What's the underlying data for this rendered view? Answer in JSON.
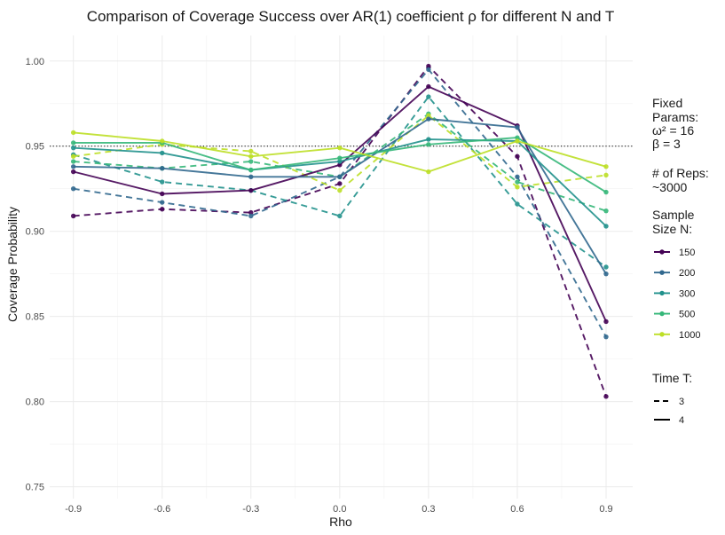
{
  "chart_data": {
    "type": "line",
    "title": "Comparison of Coverage Success over AR(1) coefficient ρ for different N and T",
    "xlabel": "Rho",
    "ylabel": "Coverage Probability",
    "x": [
      -0.9,
      -0.6,
      -0.3,
      0.0,
      0.3,
      0.6,
      0.9
    ],
    "x_ticks": [
      "-0.9",
      "-0.6",
      "-0.3",
      "0.0",
      "0.3",
      "0.6",
      "0.9"
    ],
    "y_ticks": [
      "0.75",
      "0.80",
      "0.85",
      "0.90",
      "0.95",
      "1.00"
    ],
    "xlim": [
      -0.98,
      0.99
    ],
    "ylim": [
      0.743,
      1.015
    ],
    "reference_line": {
      "y": 0.95,
      "style": "dotted"
    },
    "grid": true,
    "legend_position": "right",
    "series": [
      {
        "name": "150",
        "T": "3",
        "color": "#440154",
        "values": [
          0.909,
          0.913,
          0.911,
          0.928,
          0.997,
          0.944,
          0.803
        ]
      },
      {
        "name": "200",
        "T": "3",
        "color": "#31688e",
        "values": [
          0.925,
          0.917,
          0.909,
          0.932,
          0.995,
          0.932,
          0.838
        ]
      },
      {
        "name": "300",
        "T": "3",
        "color": "#21918c",
        "values": [
          0.945,
          0.929,
          0.924,
          0.909,
          0.979,
          0.916,
          0.879
        ]
      },
      {
        "name": "500",
        "T": "3",
        "color": "#35b779",
        "values": [
          0.941,
          0.937,
          0.941,
          0.932,
          0.969,
          0.929,
          0.912
        ]
      },
      {
        "name": "1000",
        "T": "3",
        "color": "#bddf26",
        "values": [
          0.944,
          0.951,
          0.947,
          0.924,
          0.968,
          0.926,
          0.933
        ]
      },
      {
        "name": "150",
        "T": "4",
        "color": "#440154",
        "values": [
          0.935,
          0.922,
          0.924,
          0.939,
          0.985,
          0.962,
          0.847
        ]
      },
      {
        "name": "200",
        "T": "4",
        "color": "#31688e",
        "values": [
          0.938,
          0.937,
          0.932,
          0.932,
          0.966,
          0.961,
          0.875
        ]
      },
      {
        "name": "300",
        "T": "4",
        "color": "#21918c",
        "values": [
          0.949,
          0.946,
          0.936,
          0.941,
          0.954,
          0.953,
          0.903
        ]
      },
      {
        "name": "500",
        "T": "4",
        "color": "#35b779",
        "values": [
          0.952,
          0.952,
          0.936,
          0.943,
          0.951,
          0.955,
          0.923
        ]
      },
      {
        "name": "1000",
        "T": "4",
        "color": "#bddf26",
        "values": [
          0.958,
          0.953,
          0.944,
          0.949,
          0.935,
          0.953,
          0.938
        ]
      }
    ]
  },
  "legend": {
    "fixed_title": [
      "Fixed",
      "Params:"
    ],
    "omega_text": "ω² = 16",
    "beta_text": "β = 3",
    "reps_title": "# of Reps:",
    "reps_value": "~3000",
    "sample_title": [
      "Sample",
      "Size N:"
    ],
    "sample_items": [
      {
        "label": "150",
        "color": "#440154"
      },
      {
        "label": "200",
        "color": "#31688e"
      },
      {
        "label": "300",
        "color": "#21918c"
      },
      {
        "label": "500",
        "color": "#35b779"
      },
      {
        "label": "1000",
        "color": "#bddf26"
      }
    ],
    "time_title": "Time T:",
    "time_items": [
      {
        "label": "3",
        "dash": "dashed"
      },
      {
        "label": "4",
        "dash": "solid"
      }
    ]
  }
}
